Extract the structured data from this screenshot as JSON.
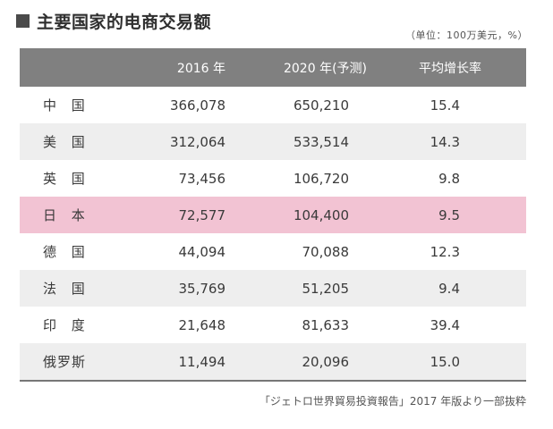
{
  "title": "主要国家的电商交易额",
  "unit_note": "（单位：100万美元，%）",
  "table": {
    "headers": [
      "",
      "2016 年",
      "2020 年(予测)",
      "平均增长率"
    ],
    "rows": [
      [
        "中 国",
        "366,078",
        "650,210",
        "15.4"
      ],
      [
        "美 国",
        "312,064",
        "533,514",
        "14.3"
      ],
      [
        "英 国",
        "73,456",
        "106,720",
        "9.8"
      ],
      [
        "日 本",
        "72,577",
        "104,400",
        "9.5"
      ],
      [
        "德 国",
        "44,094",
        "70,088",
        "12.3"
      ],
      [
        "法 国",
        "35,769",
        "51,205",
        "9.4"
      ],
      [
        "印 度",
        "21,648",
        "81,633",
        "39.4"
      ],
      [
        "俄罗斯",
        "11,494",
        "20,096",
        "15.0"
      ]
    ],
    "highlight_row_color": "#f2c3d3",
    "header_bg": "#808080"
  },
  "source": "「ジェトロ世界貿易投資報告」2017 年版より一部抜粋"
}
